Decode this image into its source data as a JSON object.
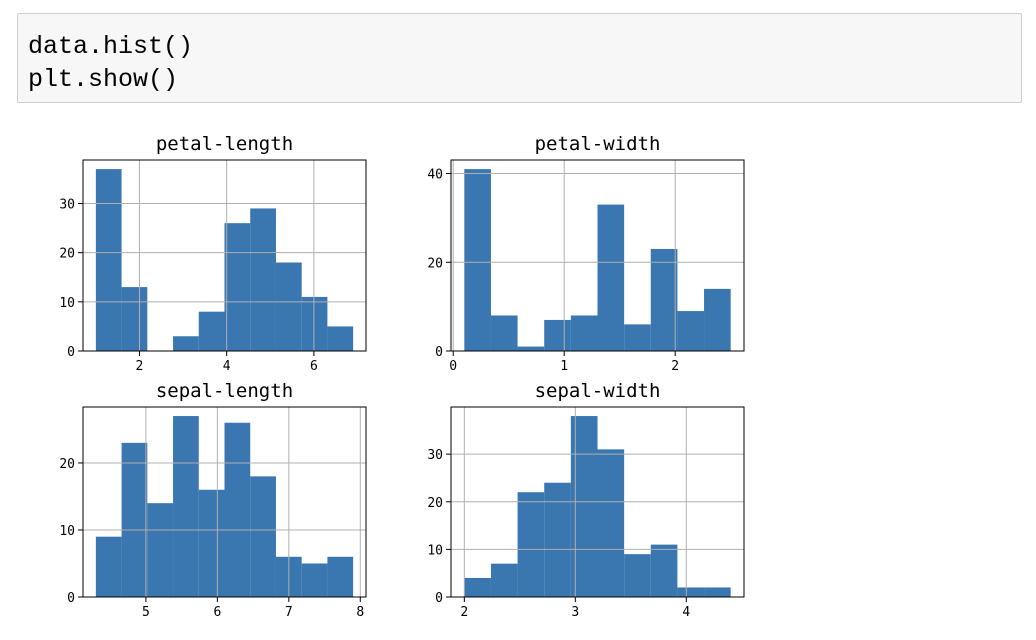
{
  "cell": {
    "code": [
      "data.hist()",
      "plt.show()"
    ]
  },
  "chart_data": [
    {
      "type": "histogram",
      "title": "petal-length",
      "color": "#3a76b0",
      "grid": true,
      "bins": [
        1.0,
        1.59,
        2.18,
        2.77,
        3.36,
        3.95,
        4.54,
        5.13,
        5.72,
        6.31,
        6.9
      ],
      "values": [
        37,
        13,
        0,
        3,
        8,
        26,
        29,
        18,
        11,
        5
      ],
      "xlim": [
        0.705,
        7.195
      ],
      "ylim": [
        0,
        38.85
      ],
      "xticks": [
        2,
        4,
        6
      ],
      "yticks": [
        0,
        10,
        20,
        30
      ]
    },
    {
      "type": "histogram",
      "title": "petal-width",
      "color": "#3a76b0",
      "grid": true,
      "bins": [
        0.1,
        0.34,
        0.58,
        0.82,
        1.06,
        1.3,
        1.54,
        1.78,
        2.02,
        2.26,
        2.5
      ],
      "values": [
        41,
        8,
        1,
        7,
        8,
        33,
        6,
        23,
        9,
        14
      ],
      "xlim": [
        -0.02,
        2.62
      ],
      "ylim": [
        0,
        43.05
      ],
      "xticks": [
        0,
        1,
        2
      ],
      "yticks": [
        0,
        20,
        40
      ]
    },
    {
      "type": "histogram",
      "title": "sepal-length",
      "color": "#3a76b0",
      "grid": true,
      "bins": [
        4.3,
        4.66,
        5.02,
        5.38,
        5.74,
        6.1,
        6.46,
        6.82,
        7.18,
        7.54,
        7.9
      ],
      "values": [
        9,
        23,
        14,
        27,
        16,
        26,
        18,
        6,
        5,
        6
      ],
      "xlim": [
        4.12,
        8.08
      ],
      "ylim": [
        0,
        28.35
      ],
      "xticks": [
        5,
        6,
        7,
        8
      ],
      "yticks": [
        0,
        10,
        20
      ]
    },
    {
      "type": "histogram",
      "title": "sepal-width",
      "color": "#3a76b0",
      "grid": true,
      "bins": [
        2.0,
        2.24,
        2.48,
        2.72,
        2.96,
        3.2,
        3.44,
        3.68,
        3.92,
        4.16,
        4.4
      ],
      "values": [
        4,
        7,
        22,
        24,
        38,
        31,
        9,
        11,
        2,
        2
      ],
      "xlim": [
        1.88,
        4.52
      ],
      "ylim": [
        0,
        39.9
      ],
      "xticks": [
        2,
        3,
        4
      ],
      "yticks": [
        0,
        10,
        20,
        30
      ]
    }
  ]
}
